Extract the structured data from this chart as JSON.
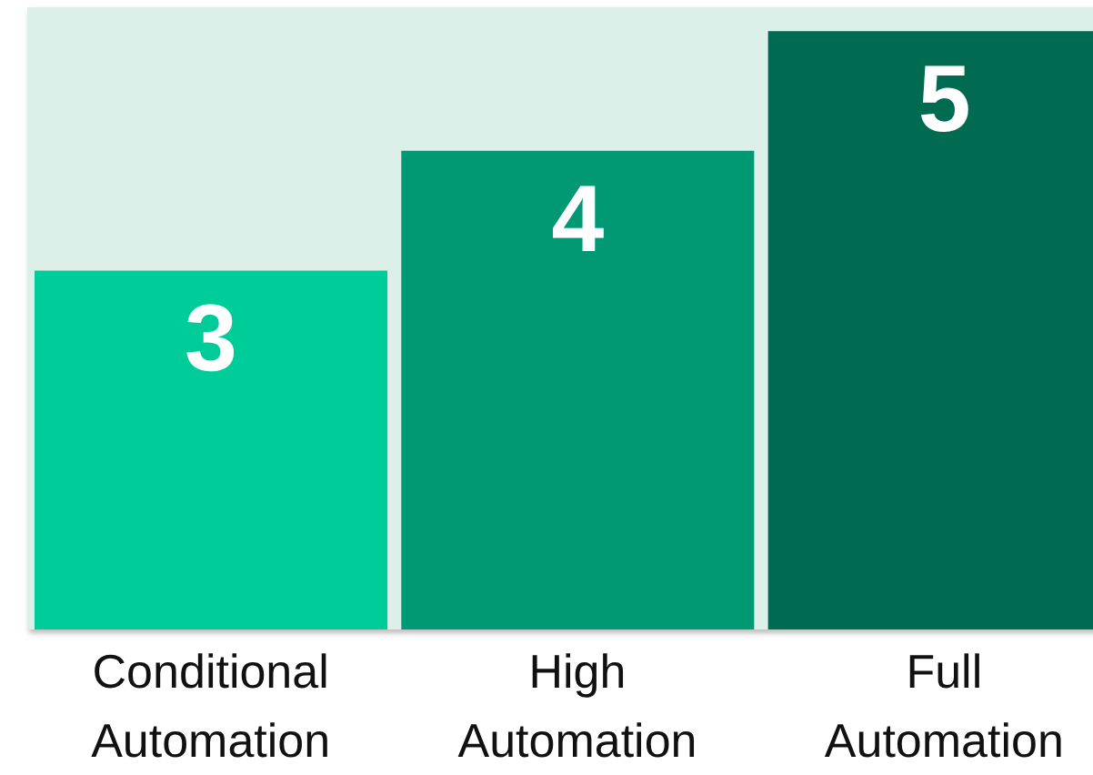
{
  "chart_data": {
    "type": "bar",
    "categories": [
      "Conditional Automation",
      "High Automation",
      "Full Automation"
    ],
    "values": [
      3,
      4,
      5
    ],
    "colors": [
      "#00cc99",
      "#009973",
      "#006b50"
    ],
    "data_labels": true
  }
}
